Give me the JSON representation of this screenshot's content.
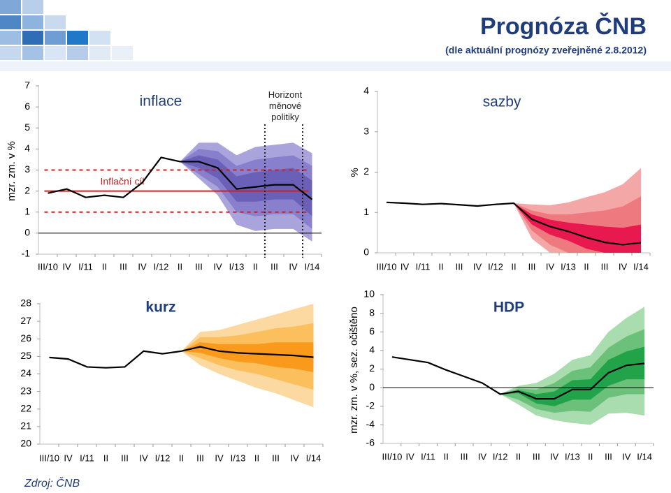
{
  "header": {
    "title": "Prognóza ČNB",
    "subtitle": "(dle aktuální prognózy zveřejněné 2.8.2012)"
  },
  "source": "Zdroj: ČNB",
  "chart_data": [
    {
      "type": "fan",
      "title": "inflace",
      "ylabel": "mzr. zm. v %",
      "categories": [
        "III/10",
        "IV",
        "I/11",
        "II",
        "III",
        "IV",
        "I/12",
        "II",
        "III",
        "IV",
        "I/13",
        "II",
        "III",
        "IV",
        "I/14"
      ],
      "values": [
        1.9,
        2.1,
        1.7,
        1.8,
        1.7,
        2.4,
        3.6,
        3.4,
        3.4,
        3.1,
        2.1,
        2.2,
        2.3,
        2.3,
        1.6
      ],
      "line_color": "#000000",
      "fan": [
        {
          "color": "#aaa4dc",
          "upper": [
            null,
            null,
            null,
            null,
            null,
            null,
            null,
            3.4,
            4.3,
            4.3,
            3.7,
            4.1,
            4.2,
            4.3,
            3.8
          ],
          "lower": [
            null,
            null,
            null,
            null,
            null,
            null,
            null,
            3.4,
            2.6,
            1.8,
            0.4,
            0.1,
            0.2,
            0.2,
            -0.4
          ]
        },
        {
          "color": "#8880cc",
          "upper": [
            null,
            null,
            null,
            null,
            null,
            null,
            null,
            3.4,
            4.0,
            3.9,
            3.2,
            3.5,
            3.6,
            3.7,
            3.2
          ],
          "lower": [
            null,
            null,
            null,
            null,
            null,
            null,
            null,
            3.4,
            2.8,
            2.2,
            1.0,
            0.8,
            0.9,
            0.9,
            0.2
          ]
        },
        {
          "color": "#6a60b8",
          "upper": [
            null,
            null,
            null,
            null,
            null,
            null,
            null,
            3.4,
            3.7,
            3.5,
            2.7,
            2.9,
            3.0,
            3.1,
            2.5
          ],
          "lower": [
            null,
            null,
            null,
            null,
            null,
            null,
            null,
            3.4,
            3.1,
            2.6,
            1.5,
            1.5,
            1.6,
            1.6,
            0.8
          ]
        }
      ],
      "ylim": [
        -1,
        7
      ],
      "yticks": [
        -1,
        0,
        1,
        2,
        3,
        4,
        5,
        6,
        7
      ],
      "zero_line": true,
      "target": 2,
      "target_band": [
        1,
        3
      ],
      "target_color": "#cc2222",
      "target_label": "Inflační cíl",
      "horizon": [
        11.5,
        13.5
      ],
      "horizon_label": "Horizont měnové politiky"
    },
    {
      "type": "fan",
      "title": "sazby",
      "ylabel": "%",
      "categories": [
        "III/10",
        "IV",
        "I/11",
        "II",
        "III",
        "IV",
        "I/12",
        "II",
        "III",
        "IV",
        "I/13",
        "II",
        "III",
        "IV",
        "I/14"
      ],
      "values": [
        1.25,
        1.23,
        1.2,
        1.22,
        1.19,
        1.16,
        1.2,
        1.23,
        0.83,
        0.65,
        0.53,
        0.38,
        0.26,
        0.2,
        0.25
      ],
      "line_color": "#000000",
      "fan": [
        {
          "color": "#f4a7a7",
          "upper": [
            null,
            null,
            null,
            null,
            null,
            null,
            null,
            1.23,
            1.2,
            1.18,
            1.25,
            1.38,
            1.5,
            1.7,
            2.1
          ],
          "lower": [
            null,
            null,
            null,
            null,
            null,
            null,
            null,
            1.23,
            0.35,
            0,
            0,
            0,
            0,
            0,
            0
          ]
        },
        {
          "color": "#ee7a80",
          "upper": [
            null,
            null,
            null,
            null,
            null,
            null,
            null,
            1.23,
            1.05,
            0.95,
            0.95,
            1.0,
            1.05,
            1.15,
            1.4
          ],
          "lower": [
            null,
            null,
            null,
            null,
            null,
            null,
            null,
            1.23,
            0.55,
            0.2,
            0,
            0,
            0,
            0,
            0
          ]
        },
        {
          "color": "#e8194f",
          "upper": [
            null,
            null,
            null,
            null,
            null,
            null,
            null,
            1.23,
            0.95,
            0.82,
            0.75,
            0.7,
            0.65,
            0.62,
            0.7
          ],
          "lower": [
            null,
            null,
            null,
            null,
            null,
            null,
            null,
            1.23,
            0.7,
            0.45,
            0.3,
            0.1,
            0,
            0,
            0
          ]
        }
      ],
      "ylim": [
        0,
        4
      ],
      "yticks": [
        0,
        1,
        2,
        3,
        4
      ],
      "zero_line": false
    },
    {
      "type": "fan",
      "title": "kurz",
      "categories": [
        "III/10",
        "IV",
        "I/11",
        "II",
        "III",
        "IV",
        "I/12",
        "II",
        "III",
        "IV",
        "I/13",
        "II",
        "III",
        "IV",
        "I/14"
      ],
      "values": [
        24.94,
        24.85,
        24.4,
        24.35,
        24.4,
        25.3,
        25.15,
        25.3,
        25.55,
        25.3,
        25.2,
        25.15,
        25.1,
        25.05,
        24.95
      ],
      "line_color": "#000000",
      "fan": [
        {
          "color": "#fcd9a0",
          "upper": [
            null,
            null,
            null,
            null,
            null,
            null,
            null,
            25.3,
            26.4,
            26.5,
            26.8,
            27.1,
            27.4,
            27.7,
            28.0
          ],
          "lower": [
            null,
            null,
            null,
            null,
            null,
            null,
            null,
            25.3,
            24.5,
            24.0,
            23.6,
            23.2,
            22.9,
            22.5,
            22.1
          ]
        },
        {
          "color": "#fbbf5d",
          "upper": [
            null,
            null,
            null,
            null,
            null,
            null,
            null,
            25.3,
            26.1,
            26.1,
            26.2,
            26.4,
            26.6,
            26.7,
            26.9
          ],
          "lower": [
            null,
            null,
            null,
            null,
            null,
            null,
            null,
            25.3,
            24.9,
            24.5,
            24.2,
            24.0,
            23.7,
            23.4,
            23.1
          ]
        },
        {
          "color": "#f99a1c",
          "upper": [
            null,
            null,
            null,
            null,
            null,
            null,
            null,
            25.3,
            25.8,
            25.7,
            25.7,
            25.7,
            25.8,
            25.8,
            25.8
          ],
          "lower": [
            null,
            null,
            null,
            null,
            null,
            null,
            null,
            25.3,
            25.2,
            24.9,
            24.7,
            24.6,
            24.4,
            24.3,
            24.1
          ]
        }
      ],
      "ylim": [
        20,
        28
      ],
      "yticks": [
        20,
        21,
        22,
        23,
        24,
        25,
        26,
        27,
        28
      ],
      "zero_line": false
    },
    {
      "type": "fan",
      "title": "HDP",
      "ylabel": "mzr. zm. v %, sez. očištěno",
      "categories": [
        "III/10",
        "IV",
        "I/11",
        "II",
        "III",
        "IV",
        "I/12",
        "II",
        "III",
        "IV",
        "I/13",
        "II",
        "III",
        "IV",
        "I/14"
      ],
      "values": [
        3.3,
        3.0,
        2.7,
        1.9,
        1.2,
        0.5,
        -0.7,
        -0.4,
        -1.2,
        -1.2,
        -0.2,
        -0.2,
        1.6,
        2.4,
        2.6
      ],
      "line_color": "#000000",
      "fan": [
        {
          "color": "#a9dcae",
          "upper": [
            null,
            null,
            null,
            null,
            null,
            null,
            -0.7,
            0.2,
            0.5,
            1.5,
            3,
            3.5,
            6,
            7.5,
            8.7
          ],
          "lower": [
            null,
            null,
            null,
            null,
            null,
            null,
            -0.7,
            -1.8,
            -3,
            -3.5,
            -3.8,
            -4,
            -2.8,
            -2.7,
            -3
          ]
        },
        {
          "color": "#6cc17a",
          "upper": [
            null,
            null,
            null,
            null,
            null,
            null,
            -0.7,
            -0.1,
            -0.2,
            0.5,
            1.8,
            2.2,
            4.3,
            5.5,
            6.3
          ],
          "lower": [
            null,
            null,
            null,
            null,
            null,
            null,
            -0.7,
            -1.3,
            -2.3,
            -2.7,
            -2.5,
            -2.6,
            -1.1,
            -0.7,
            -0.7
          ]
        },
        {
          "color": "#22a34a",
          "upper": [
            null,
            null,
            null,
            null,
            null,
            null,
            -0.7,
            -0.25,
            -0.7,
            -0.4,
            0.8,
            0.9,
            3.0,
            3.9,
            4.4
          ],
          "lower": [
            null,
            null,
            null,
            null,
            null,
            null,
            -0.7,
            -0.6,
            -1.7,
            -2.0,
            -1.3,
            -1.3,
            0.2,
            0.9,
            0.9
          ]
        }
      ],
      "ylim": [
        -6,
        10
      ],
      "yticks": [
        -6,
        -4,
        -2,
        0,
        2,
        4,
        6,
        8,
        10
      ],
      "zero_line": true
    }
  ]
}
